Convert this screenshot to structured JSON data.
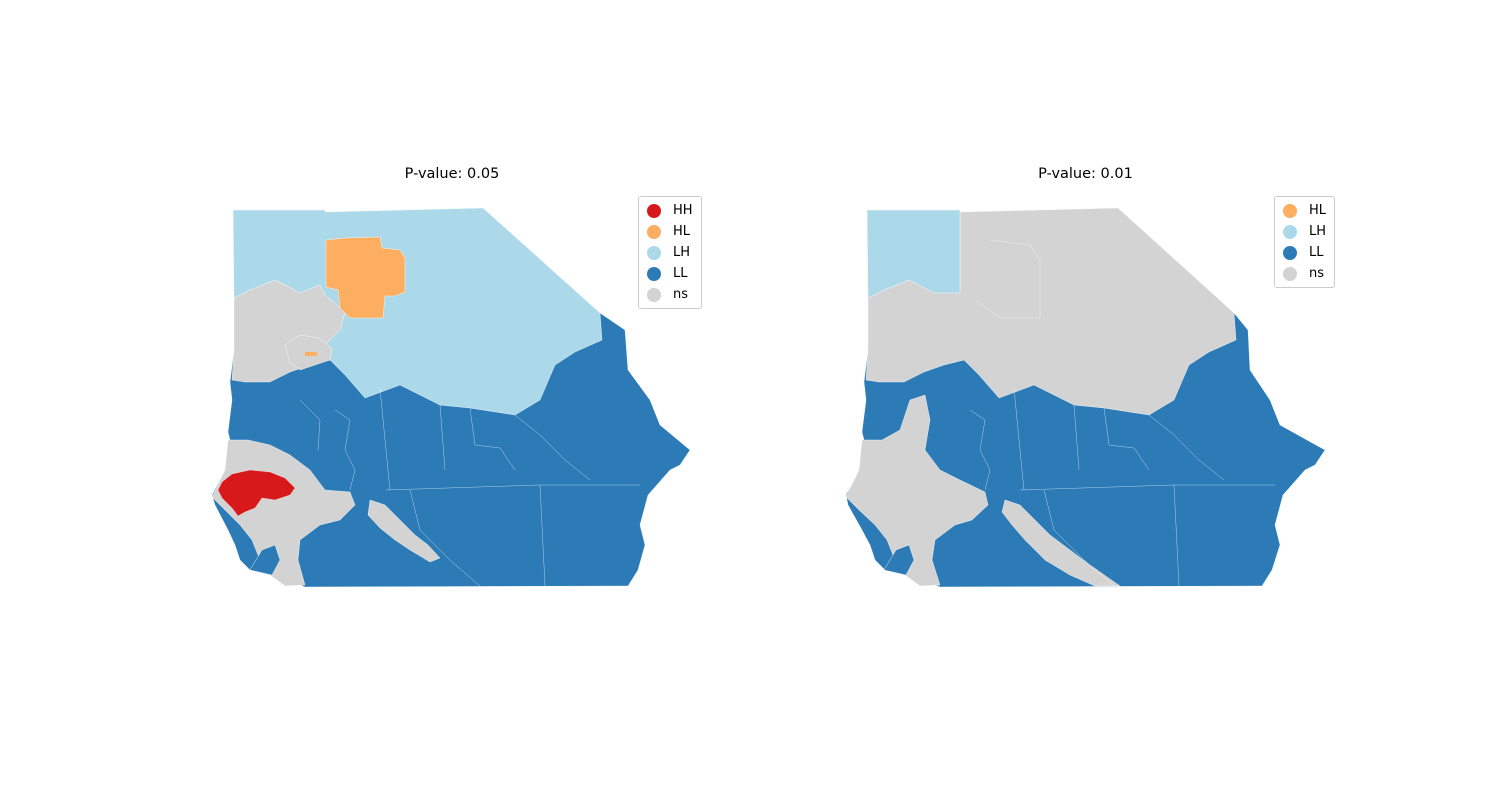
{
  "colors": {
    "HH": "#d7191c",
    "HL": "#fdae61",
    "LH": "#abd9e9",
    "LL": "#2c7bb6",
    "ns": "#d3d3d3"
  },
  "left": {
    "title": "P-value: 0.05",
    "legend": [
      {
        "label": "HH",
        "key": "HH"
      },
      {
        "label": "HL",
        "key": "HL"
      },
      {
        "label": "LH",
        "key": "LH"
      },
      {
        "label": "LL",
        "key": "LL"
      },
      {
        "label": "ns",
        "key": "ns"
      }
    ]
  },
  "right": {
    "title": "P-value: 0.01",
    "legend": [
      {
        "label": "HL",
        "key": "HL"
      },
      {
        "label": "LH",
        "key": "LH"
      },
      {
        "label": "LL",
        "key": "LL"
      },
      {
        "label": "ns",
        "key": "ns"
      }
    ]
  }
}
